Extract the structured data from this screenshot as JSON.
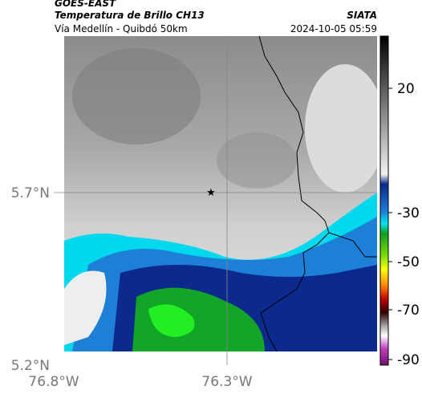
{
  "header": {
    "satellite": "GOES-EAST",
    "product": "Temperatura de Brillo CH13",
    "route": "Vía Medellín - Quibdó 50km",
    "source": "SIATA",
    "timestamp": "2024-10-05 05:59"
  },
  "axes": {
    "latitude": [
      "5.7°N",
      "5.2°N"
    ],
    "longitude": [
      "76.8°W",
      "76.3°W"
    ]
  },
  "colorbar": {
    "ticks": [
      20,
      -30,
      -50,
      -70,
      -90
    ]
  }
}
